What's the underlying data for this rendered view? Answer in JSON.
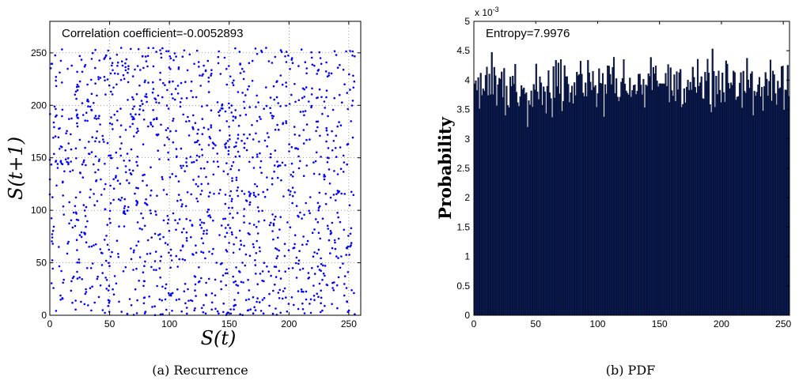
{
  "chart_data": [
    {
      "type": "scatter",
      "xlabel": "S(t)",
      "ylabel": "S(t+1)",
      "annotation": "Correlation coefficient=-0.0052893",
      "caption": "(a) Recurrence",
      "xlim": [
        0,
        260
      ],
      "ylim": [
        0,
        280
      ],
      "xticks": [
        0,
        50,
        100,
        150,
        200,
        250
      ],
      "yticks": [
        0,
        50,
        100,
        150,
        200,
        250
      ],
      "grid": true,
      "marker_color": "#0000ff",
      "point_count": 1500,
      "distribution": "uniform",
      "value_range": [
        0,
        255
      ],
      "seed": 12345
    },
    {
      "type": "bar",
      "xlabel": "",
      "ylabel": "Probability",
      "annotation": "Entropy=7.9976",
      "caption": "(b) PDF",
      "y_exponent_label": "x 10",
      "y_exponent_power": "-3",
      "xlim": [
        0,
        255
      ],
      "ylim": [
        0,
        5
      ],
      "xticks": [
        0,
        50,
        100,
        150,
        200,
        250
      ],
      "yticks": [
        0,
        0.5,
        1,
        1.5,
        2,
        2.5,
        3,
        3.5,
        4,
        4.5,
        5
      ],
      "bar_color": "#0b1b55",
      "bin_count": 256,
      "mean_value": 3.906,
      "value_range": [
        3.2,
        4.6
      ],
      "seed": 67890
    }
  ]
}
